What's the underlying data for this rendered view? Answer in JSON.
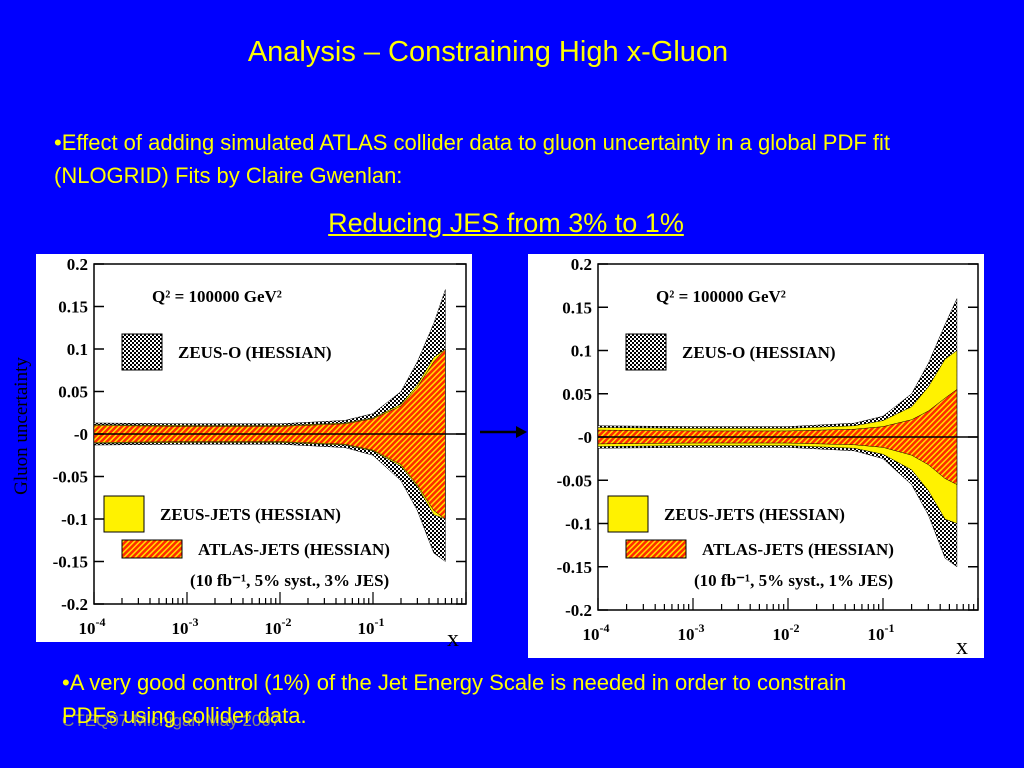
{
  "slide": {
    "title": "Analysis – Constraining High x-Gluon",
    "bullet1": "•Effect of adding simulated ATLAS collider data to gluon uncertainty in a global PDF fit (NLOGRID) Fits by Claire Gwenlan:",
    "subtitle": "Reducing JES from 3% to 1%",
    "bullet2": "•A very good control (1%) of the Jet Energy Scale is needed in order to constrain PDFs using collider data.",
    "footer": "CTEQ07 Michigan May 2007",
    "y_axis_label": "Gluon uncertainty",
    "x_label_left": "x",
    "x_label_right": "x",
    "background_color": "#0000FF",
    "text_color": "#FFFF00"
  },
  "chart_data": [
    {
      "type": "area",
      "annotation": "Q² = 100000 GeV²",
      "x_scale": "log",
      "xlim": [
        0.0001,
        1
      ],
      "ylim": [
        -0.2,
        0.2
      ],
      "xticks": [
        "10^-4",
        "10^-3",
        "10^-2",
        "10^-1"
      ],
      "yticks": [
        "0.2",
        "0.15",
        "0.1",
        "0.05",
        "-0",
        "-0.05",
        "-0.1",
        "-0.15",
        "-0.2"
      ],
      "legend": [
        {
          "label": "ZEUS-O (HESSIAN)",
          "style": "hatched-gray"
        },
        {
          "label": "ZEUS-JETS (HESSIAN)",
          "style": "yellow"
        },
        {
          "label": "ATLAS-JETS (HESSIAN)",
          "style": "red-hatched"
        }
      ],
      "legend_note": "(10 fb⁻¹, 5% syst., 3% JES)",
      "x": [
        0.0001,
        0.001,
        0.01,
        0.05,
        0.1,
        0.2,
        0.3,
        0.45,
        0.6
      ],
      "series": [
        {
          "name": "ZEUS-O (HESSIAN)",
          "upper": [
            0.013,
            0.012,
            0.012,
            0.016,
            0.024,
            0.05,
            0.085,
            0.13,
            0.17
          ],
          "lower": [
            -0.013,
            -0.012,
            -0.012,
            -0.016,
            -0.025,
            -0.055,
            -0.09,
            -0.14,
            -0.15
          ]
        },
        {
          "name": "ZEUS-JETS (HESSIAN)",
          "upper": [
            0.011,
            0.01,
            0.01,
            0.013,
            0.019,
            0.035,
            0.058,
            0.09,
            0.1
          ],
          "lower": [
            -0.011,
            -0.01,
            -0.01,
            -0.013,
            -0.02,
            -0.038,
            -0.062,
            -0.095,
            -0.1
          ]
        },
        {
          "name": "ATLAS-JETS (HESSIAN)",
          "upper": [
            0.01,
            0.009,
            0.009,
            0.012,
            0.018,
            0.033,
            0.055,
            0.085,
            0.1
          ],
          "lower": [
            -0.01,
            -0.009,
            -0.009,
            -0.012,
            -0.019,
            -0.036,
            -0.06,
            -0.09,
            -0.1
          ]
        }
      ]
    },
    {
      "type": "area",
      "annotation": "Q² = 100000 GeV²",
      "x_scale": "log",
      "xlim": [
        0.0001,
        1
      ],
      "ylim": [
        -0.2,
        0.2
      ],
      "xticks": [
        "10^-4",
        "10^-3",
        "10^-2",
        "10^-1"
      ],
      "yticks": [
        "0.2",
        "0.15",
        "0.1",
        "0.05",
        "-0",
        "-0.05",
        "-0.1",
        "-0.15",
        "-0.2"
      ],
      "legend": [
        {
          "label": "ZEUS-O (HESSIAN)",
          "style": "hatched-gray"
        },
        {
          "label": "ZEUS-JETS (HESSIAN)",
          "style": "yellow"
        },
        {
          "label": "ATLAS-JETS (HESSIAN)",
          "style": "red-hatched"
        }
      ],
      "legend_note": "(10 fb⁻¹, 5% syst., 1% JES)",
      "x": [
        0.0001,
        0.001,
        0.01,
        0.05,
        0.1,
        0.2,
        0.3,
        0.45,
        0.6
      ],
      "series": [
        {
          "name": "ZEUS-O (HESSIAN)",
          "upper": [
            0.013,
            0.012,
            0.012,
            0.016,
            0.024,
            0.05,
            0.085,
            0.13,
            0.16
          ],
          "lower": [
            -0.013,
            -0.012,
            -0.012,
            -0.016,
            -0.025,
            -0.055,
            -0.09,
            -0.14,
            -0.15
          ]
        },
        {
          "name": "ZEUS-JETS (HESSIAN)",
          "upper": [
            0.011,
            0.01,
            0.01,
            0.013,
            0.019,
            0.035,
            0.058,
            0.09,
            0.1
          ],
          "lower": [
            -0.011,
            -0.01,
            -0.01,
            -0.013,
            -0.02,
            -0.038,
            -0.062,
            -0.095,
            -0.1
          ]
        },
        {
          "name": "ATLAS-JETS (HESSIAN)",
          "upper": [
            0.008,
            0.007,
            0.007,
            0.009,
            0.012,
            0.02,
            0.03,
            0.045,
            0.055
          ],
          "lower": [
            -0.008,
            -0.007,
            -0.007,
            -0.009,
            -0.012,
            -0.021,
            -0.032,
            -0.048,
            -0.055
          ]
        }
      ]
    }
  ]
}
